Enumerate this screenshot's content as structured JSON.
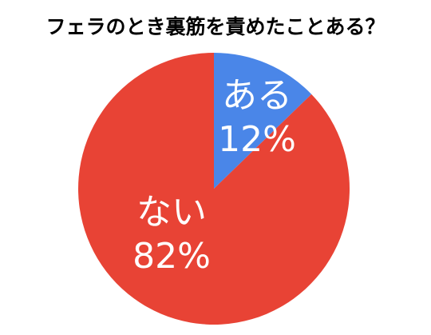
{
  "chart_data": {
    "type": "pie",
    "title": "フェラのとき裏筋を責めたことある？",
    "categories": [
      "ある",
      "ない"
    ],
    "values": [
      12,
      82
    ],
    "value_labels": [
      "12%",
      "82%"
    ],
    "colors": [
      "#4a86e8",
      "#e84335"
    ]
  }
}
